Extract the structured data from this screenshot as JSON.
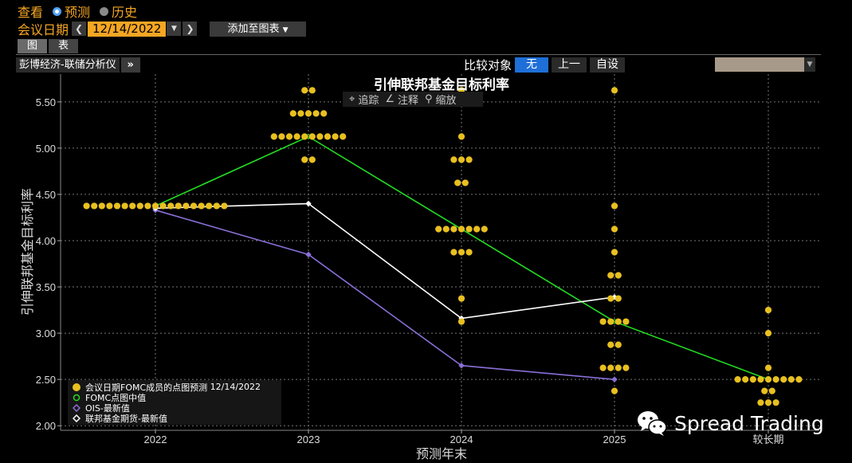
{
  "toolbar": {
    "view_label": "查看",
    "mode_forecast": "预测",
    "mode_history": "历史",
    "meeting_date_label": "会议日期",
    "meeting_date_value": "12/14/2022",
    "add_to_chart": "添加至图表",
    "tab_chart": "图",
    "tab_table": "表",
    "source": "彭博经济-联储分析仪",
    "compare_label": "比较对象",
    "compare_none": "无",
    "compare_previous": "上一",
    "compare_custom": "自设"
  },
  "chart_tools": {
    "track": "追踪",
    "annotate": "注释",
    "zoom": "缩放"
  },
  "colors": {
    "dots": "#e8c020",
    "median": "#22dd22",
    "ois": "#8a70d8",
    "futures": "#ffffff",
    "accent": "#f5a623"
  },
  "watermark": "Spread Trading",
  "chart_data": {
    "type": "scatter",
    "title": "引伸联邦基金目标利率",
    "xlabel": "预测年末",
    "ylabel": "引伸联邦基金目标利率",
    "categories": [
      "2022",
      "2023",
      "2024",
      "2025",
      "较长期"
    ],
    "ylim": [
      1.95,
      5.8
    ],
    "yticks": [
      "2.00",
      "2.50",
      "3.00",
      "3.50",
      "4.00",
      "4.50",
      "5.00",
      "5.50"
    ],
    "grid": true,
    "legend_position": "bottom-left",
    "dot_plot": [
      {
        "category": "2022",
        "points": [
          [
            4.375,
            19
          ]
        ]
      },
      {
        "category": "2023",
        "points": [
          [
            5.625,
            2
          ],
          [
            5.375,
            5
          ],
          [
            5.125,
            10
          ],
          [
            4.875,
            2
          ]
        ]
      },
      {
        "category": "2024",
        "points": [
          [
            5.625,
            1
          ],
          [
            5.125,
            1
          ],
          [
            4.875,
            3
          ],
          [
            4.625,
            2
          ],
          [
            4.125,
            7
          ],
          [
            3.875,
            3
          ],
          [
            3.375,
            1
          ],
          [
            3.125,
            1
          ]
        ]
      },
      {
        "category": "2025",
        "points": [
          [
            5.625,
            1
          ],
          [
            4.375,
            1
          ],
          [
            4.125,
            1
          ],
          [
            3.875,
            1
          ],
          [
            3.625,
            2
          ],
          [
            3.375,
            2
          ],
          [
            3.125,
            4
          ],
          [
            2.875,
            2
          ],
          [
            2.625,
            4
          ],
          [
            2.375,
            1
          ]
        ]
      },
      {
        "category": "较长期",
        "points": [
          [
            3.25,
            1
          ],
          [
            3.0,
            1
          ],
          [
            2.625,
            1
          ],
          [
            2.5,
            9
          ],
          [
            2.375,
            2
          ],
          [
            2.25,
            3
          ]
        ]
      }
    ],
    "series": [
      {
        "name": "FOMC点图中值",
        "values": [
          4.375,
          5.125,
          4.125,
          3.125,
          2.5
        ]
      },
      {
        "name": "OIS-最新值",
        "values": [
          4.33,
          3.85,
          2.65,
          2.5,
          null
        ]
      },
      {
        "name": "联邦基金期货-最新值",
        "values": [
          4.35,
          4.4,
          3.16,
          3.39,
          null
        ]
      }
    ],
    "legend": [
      {
        "label": "会议日期FOMC成员的点图预测",
        "date": "12/14/2022"
      },
      {
        "label": "FOMC点图中值"
      },
      {
        "label": "OIS-最新值"
      },
      {
        "label": "联邦基金期货-最新值"
      }
    ]
  }
}
